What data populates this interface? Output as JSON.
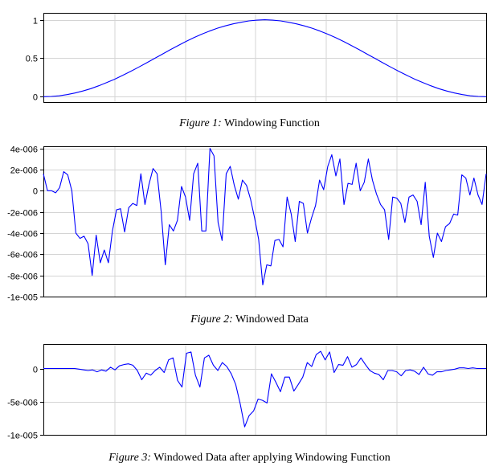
{
  "colors": {
    "line": "#0000ff",
    "grid": "#d4d4d4",
    "frame": "#000000"
  },
  "charts": [
    {
      "caption_prefix": "Figure 1:",
      "caption_text": " Windowing Function"
    },
    {
      "caption_prefix": "Figure 2:",
      "caption_text": " Windowed Data"
    },
    {
      "caption_prefix": "Figure 3:",
      "caption_text": " Windowed Data after applying Windowing Function"
    }
  ],
  "chart_data": [
    {
      "type": "line",
      "title": "Figure 1: Windowing Function",
      "ylim": [
        -0.07,
        1.09
      ],
      "ticks": [
        {
          "value": 1,
          "label": "1"
        },
        {
          "value": 0.5,
          "label": "0.5"
        },
        {
          "value": 0,
          "label": "0"
        }
      ],
      "series": [
        {
          "values": [
            0,
            0.003,
            0.012,
            0.027,
            0.048,
            0.074,
            0.105,
            0.142,
            0.183,
            0.227,
            0.276,
            0.327,
            0.381,
            0.437,
            0.494,
            0.551,
            0.608,
            0.663,
            0.716,
            0.766,
            0.812,
            0.853,
            0.89,
            0.921,
            0.947,
            0.968,
            0.985,
            0.995,
            1,
            0.995,
            0.985,
            0.968,
            0.947,
            0.921,
            0.89,
            0.853,
            0.812,
            0.766,
            0.716,
            0.663,
            0.608,
            0.551,
            0.494,
            0.437,
            0.381,
            0.327,
            0.276,
            0.227,
            0.183,
            0.142,
            0.105,
            0.074,
            0.048,
            0.027,
            0.012,
            0.003,
            0
          ]
        }
      ]
    },
    {
      "type": "line",
      "title": "Figure 2: Windowed Data",
      "ylim": [
        -1e-05,
        4.2e-06
      ],
      "ticks": [
        {
          "value": 4e-06,
          "label": "4e-006"
        },
        {
          "value": 2e-06,
          "label": "2e-006"
        },
        {
          "value": 0,
          "label": "0"
        },
        {
          "value": -2e-06,
          "label": "-2e-006"
        },
        {
          "value": -4e-06,
          "label": "-4e-006"
        },
        {
          "value": -6e-06,
          "label": "-6e-006"
        },
        {
          "value": -8e-06,
          "label": "-8e-006"
        },
        {
          "value": -1e-05,
          "label": "-1e-005"
        }
      ],
      "series": [
        {
          "values": [
            1.6e-06,
            0,
            0,
            -2e-07,
            3e-07,
            1.8e-06,
            1.5e-06,
            0,
            -4e-06,
            -4.5e-06,
            -4.3e-06,
            -5e-06,
            -8e-06,
            -4.2e-06,
            -6.8e-06,
            -5.6e-06,
            -6.8e-06,
            -3.8e-06,
            -1.8e-06,
            -1.7e-06,
            -3.9e-06,
            -1.6e-06,
            -1.2e-06,
            -1.4e-06,
            1.6e-06,
            -1.3e-06,
            6e-07,
            2.1e-06,
            1.6e-06,
            -2e-06,
            -7e-06,
            -3.2e-06,
            -3.8e-06,
            -2.8e-06,
            4e-07,
            -6e-07,
            -2.8e-06,
            1.6e-06,
            2.6e-06,
            -3.8e-06,
            -3.8e-06,
            4e-06,
            3.3e-06,
            -3e-06,
            -4.7e-06,
            1.6e-06,
            2.3e-06,
            5e-07,
            -8e-07,
            1e-06,
            5e-07,
            -8e-07,
            -2.6e-06,
            -4.6e-06,
            -8.9e-06,
            -7e-06,
            -7.1e-06,
            -4.7e-06,
            -4.6e-06,
            -5.3e-06,
            -6e-07,
            -2.2e-06,
            -4.8e-06,
            -1e-06,
            -1.2e-06,
            -4e-06,
            -2.6e-06,
            -1.4e-06,
            1e-06,
            1e-07,
            2.3e-06,
            3.4e-06,
            1.4e-06,
            3e-06,
            -1.3e-06,
            7e-07,
            6e-07,
            2.6e-06,
            0,
            8e-07,
            3e-06,
            1e-06,
            -3e-07,
            -1.3e-06,
            -1.8e-06,
            -4.6e-06,
            -6e-07,
            -7e-07,
            -1.2e-06,
            -3e-06,
            -6e-07,
            -4e-07,
            -1e-06,
            -3.2e-06,
            8e-07,
            -4.3e-06,
            -6.3e-06,
            -4e-06,
            -4.8e-06,
            -3.4e-06,
            -3.1e-06,
            -2.2e-06,
            -2.3e-06,
            1.5e-06,
            1.2e-06,
            -4e-07,
            1.2e-06,
            -4e-07,
            -1.3e-06,
            1.6e-06
          ]
        }
      ]
    },
    {
      "type": "line",
      "title": "Figure 3: Windowed Data after applying Windowing Function",
      "ylim": [
        -1e-05,
        3.7e-06
      ],
      "ticks": [
        {
          "value": 0,
          "label": "0"
        },
        {
          "value": -5e-06,
          "label": "-5e-006"
        },
        {
          "value": -1e-05,
          "label": "-1e-005"
        }
      ],
      "series": [
        {
          "values": [
            0,
            0,
            0,
            0,
            0,
            0,
            0,
            0,
            -1e-07,
            -2e-07,
            -3e-07,
            -2e-07,
            -5e-07,
            -2e-07,
            -4e-07,
            2e-07,
            -2e-07,
            4e-07,
            6e-07,
            7e-07,
            5e-07,
            -3e-07,
            -1.7e-06,
            -7e-07,
            -1e-06,
            -3e-07,
            2e-07,
            -6e-07,
            1.3e-06,
            1.6e-06,
            -1.8e-06,
            -2.8e-06,
            2.3e-06,
            2.5e-06,
            -1e-06,
            -2.8e-06,
            1.6e-06,
            2e-06,
            5e-07,
            -3e-07,
            9e-07,
            3e-07,
            -8e-07,
            -2.4e-06,
            -5.3e-06,
            -8.8e-06,
            -7.1e-06,
            -6.4e-06,
            -4.6e-06,
            -4.8e-06,
            -5.2e-06,
            -8e-07,
            -2.1e-06,
            -3.5e-06,
            -1.3e-06,
            -1.3e-06,
            -3.4e-06,
            -2.4e-06,
            -1.3e-06,
            9e-07,
            3e-07,
            2.1e-06,
            2.6e-06,
            1.3e-06,
            2.5e-06,
            -6e-07,
            6e-07,
            5e-07,
            1.8e-06,
            2e-07,
            6e-07,
            1.6e-06,
            6e-07,
            -3e-07,
            -7e-07,
            -9e-07,
            -1.7e-06,
            -3e-07,
            -3e-07,
            -5e-07,
            -1.1e-06,
            -3e-07,
            -2e-07,
            -4e-07,
            -9e-07,
            2e-07,
            -8e-07,
            -1e-06,
            -5e-07,
            -5e-07,
            -3e-07,
            -2e-07,
            -1e-07,
            1e-07,
            1e-07,
            0,
            1e-07,
            0,
            0,
            0
          ]
        }
      ]
    }
  ]
}
